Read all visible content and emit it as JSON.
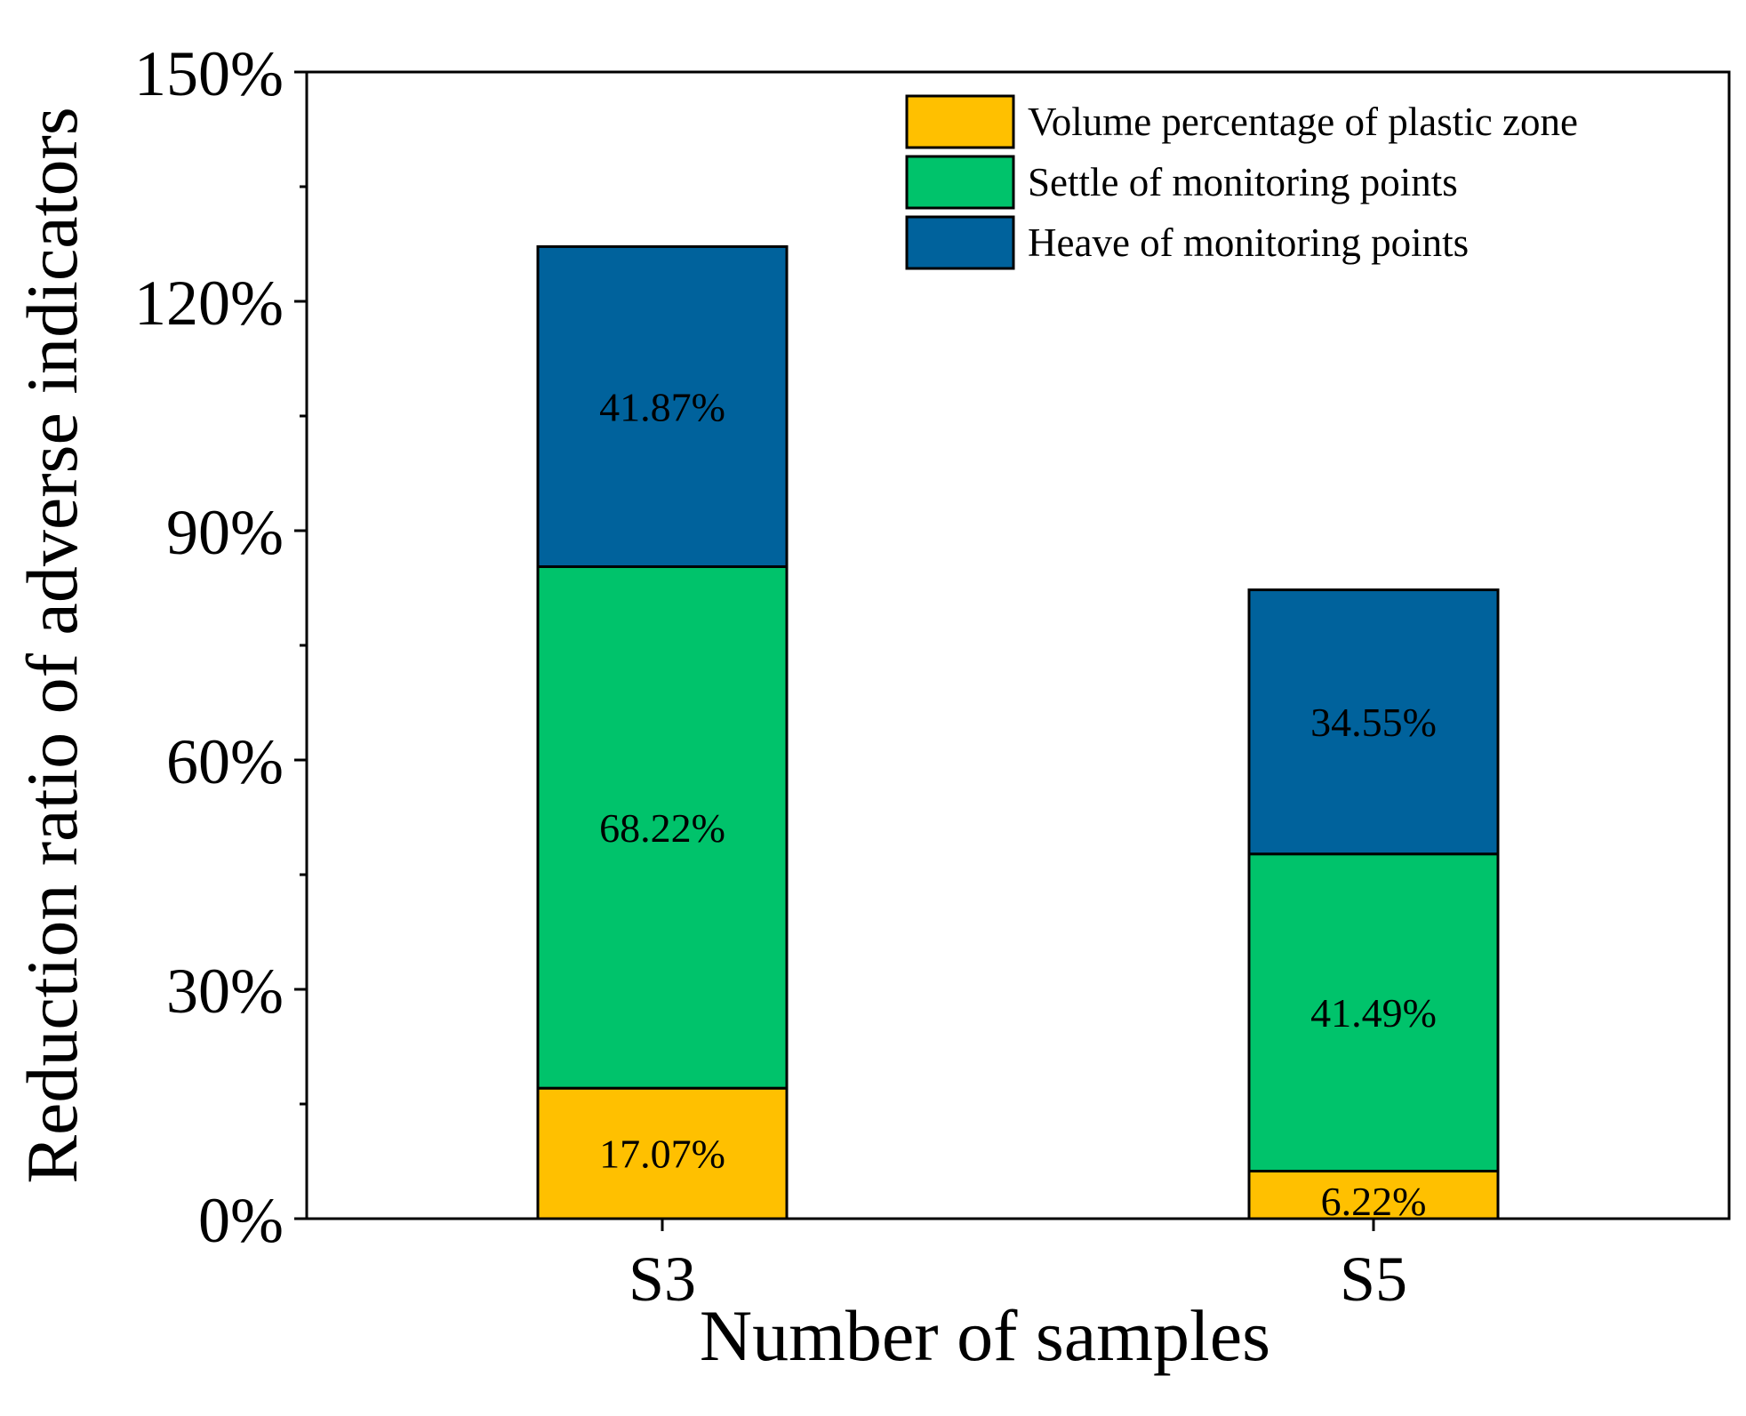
{
  "chart_data": {
    "type": "bar",
    "stacked": true,
    "categories": [
      "S3",
      "S5"
    ],
    "series": [
      {
        "name": "Volume percentage of plastic zone",
        "color": "#FFC000",
        "values": [
          17.07,
          6.22
        ],
        "labels": [
          "17.07%",
          "6.22%"
        ]
      },
      {
        "name": "Settle of monitoring points",
        "color": "#00C36B",
        "values": [
          68.22,
          41.49
        ],
        "labels": [
          "68.22%",
          "41.49%"
        ]
      },
      {
        "name": "Heave of monitoring points",
        "color": "#00629C",
        "values": [
          41.87,
          34.55
        ],
        "labels": [
          "41.87%",
          "34.55%"
        ]
      }
    ],
    "xlabel": "Number of samples",
    "ylabel": "Reduction ratio of adverse indicators",
    "ylim": [
      0,
      150
    ],
    "yticks": [
      0,
      30,
      60,
      90,
      120,
      150
    ],
    "ytick_labels": [
      "0%",
      "30%",
      "60%",
      "90%",
      "120%",
      "150%"
    ],
    "legend_position": "top-right"
  }
}
